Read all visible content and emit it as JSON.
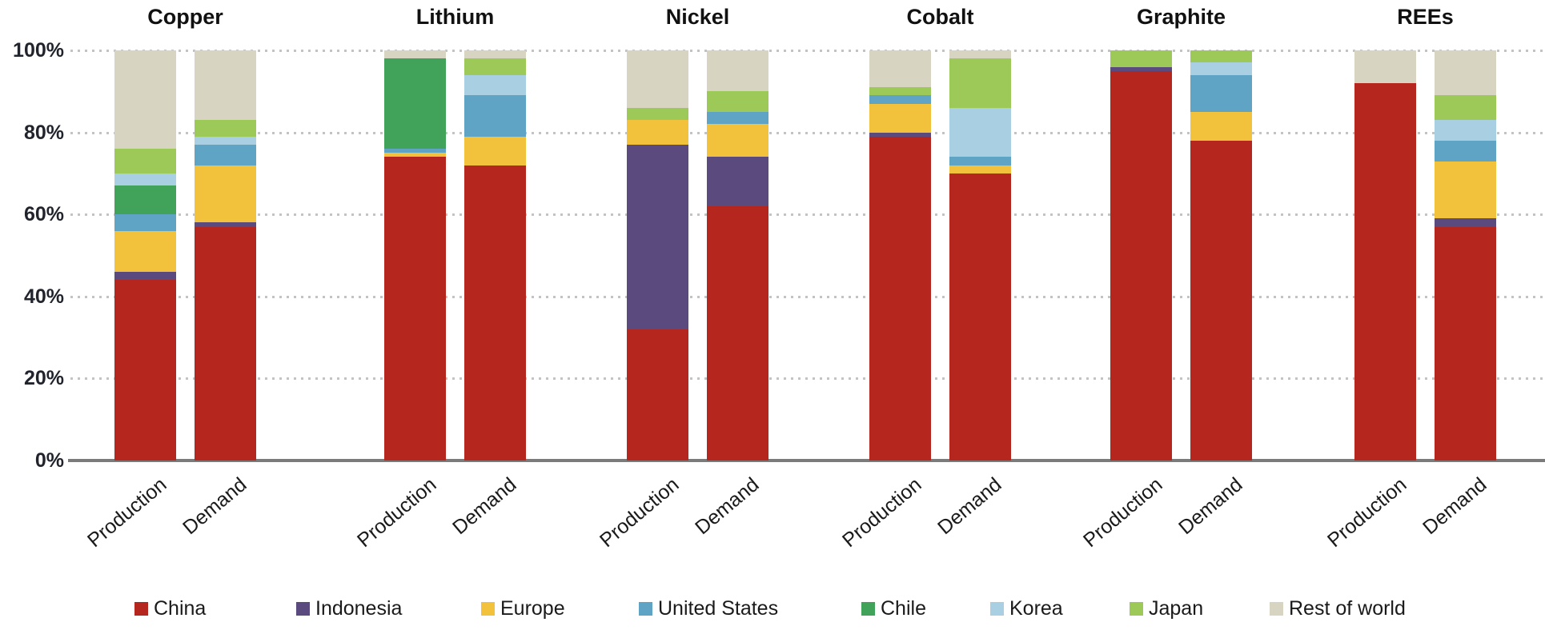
{
  "chart_data": {
    "type": "bar",
    "subtype": "100-percent-stacked-columns",
    "title": "",
    "categories": [
      "Copper",
      "Lithium",
      "Nickel",
      "Cobalt",
      "Graphite",
      "REEs"
    ],
    "bars_per_category": [
      "Production",
      "Demand"
    ],
    "stack_order_bottom_to_top": [
      "China",
      "Indonesia",
      "Europe",
      "United States",
      "Chile",
      "Korea",
      "Japan",
      "Rest of world"
    ],
    "series_colors": {
      "China": "#b5261e",
      "Indonesia": "#5b4a7e",
      "Europe": "#f2c23d",
      "United States": "#5fa4c5",
      "Chile": "#41a35a",
      "Korea": "#a8cfe2",
      "Japan": "#9cc958",
      "Rest of world": "#d8d4c2"
    },
    "values": {
      "Copper": {
        "Production": {
          "China": 44,
          "Indonesia": 2,
          "Europe": 10,
          "United States": 4,
          "Chile": 7,
          "Korea": 3,
          "Japan": 6,
          "Rest of world": 24
        },
        "Demand": {
          "China": 57,
          "Indonesia": 1,
          "Europe": 14,
          "United States": 5,
          "Korea": 2,
          "Japan": 4,
          "Rest of world": 17
        }
      },
      "Lithium": {
        "Production": {
          "China": 74,
          "Europe": 1,
          "United States": 1,
          "Chile": 22,
          "Rest of world": 2
        },
        "Demand": {
          "China": 72,
          "Europe": 7,
          "United States": 10,
          "Korea": 5,
          "Japan": 4,
          "Rest of world": 2
        }
      },
      "Nickel": {
        "Production": {
          "China": 32,
          "Indonesia": 45,
          "Europe": 6,
          "Japan": 3,
          "Rest of world": 14
        },
        "Demand": {
          "China": 62,
          "Indonesia": 12,
          "Europe": 8,
          "United States": 3,
          "Japan": 5,
          "Rest of world": 10
        }
      },
      "Cobalt": {
        "Production": {
          "China": 79,
          "Indonesia": 1,
          "Europe": 7,
          "United States": 2,
          "Japan": 2,
          "Rest of world": 9
        },
        "Demand": {
          "China": 70,
          "Europe": 2,
          "United States": 2,
          "Korea": 12,
          "Japan": 12,
          "Rest of world": 2
        }
      },
      "Graphite": {
        "Production": {
          "China": 95,
          "Indonesia": 1,
          "Japan": 4
        },
        "Demand": {
          "China": 78,
          "Europe": 7,
          "United States": 9,
          "Korea": 3,
          "Japan": 3
        }
      },
      "REEs": {
        "Production": {
          "China": 92,
          "Rest of world": 8
        },
        "Demand": {
          "China": 57,
          "Indonesia": 2,
          "Europe": 14,
          "United States": 5,
          "Korea": 5,
          "Japan": 6,
          "Rest of world": 11
        }
      }
    },
    "ylim": [
      0,
      100
    ],
    "yticks": [
      "0%",
      "20%",
      "40%",
      "60%",
      "80%",
      "100%"
    ],
    "grid": "dotted-horizontal",
    "legend_position": "bottom"
  },
  "legend": {
    "items": [
      {
        "label": "China",
        "color": "#b5261e"
      },
      {
        "label": "Indonesia",
        "color": "#5b4a7e"
      },
      {
        "label": "Europe",
        "color": "#f2c23d"
      },
      {
        "label": "United States",
        "color": "#5fa4c5"
      },
      {
        "label": "Chile",
        "color": "#41a35a"
      },
      {
        "label": "Korea",
        "color": "#a8cfe2"
      },
      {
        "label": "Japan",
        "color": "#9cc958"
      },
      {
        "label": "Rest of world",
        "color": "#d8d4c2"
      }
    ]
  }
}
